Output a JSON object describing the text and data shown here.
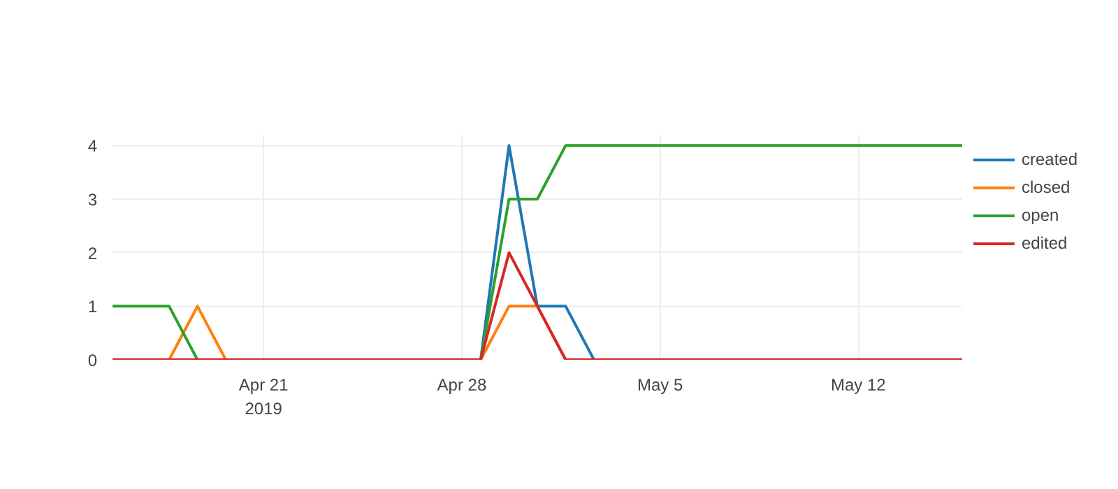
{
  "chart_data": {
    "type": "line",
    "x": [
      "2019-04-15T16:00",
      "2019-04-16T16:00",
      "2019-04-17T16:00",
      "2019-04-18T16:00",
      "2019-04-19T16:00",
      "2019-04-20T16:00",
      "2019-04-21T16:00",
      "2019-04-22T16:00",
      "2019-04-23T16:00",
      "2019-04-24T16:00",
      "2019-04-25T16:00",
      "2019-04-26T16:00",
      "2019-04-27T16:00",
      "2019-04-28T16:00",
      "2019-04-29T16:00",
      "2019-04-30T16:00",
      "2019-05-01T16:00",
      "2019-05-02T16:00",
      "2019-05-03T16:00",
      "2019-05-04T16:00",
      "2019-05-05T16:00",
      "2019-05-06T16:00",
      "2019-05-07T16:00",
      "2019-05-08T16:00",
      "2019-05-09T16:00",
      "2019-05-10T16:00",
      "2019-05-11T16:00",
      "2019-05-12T16:00",
      "2019-05-13T16:00",
      "2019-05-14T16:00",
      "2019-05-15T16:00"
    ],
    "series": [
      {
        "name": "created",
        "color": "#1f77b4",
        "values": [
          null,
          null,
          null,
          null,
          null,
          null,
          null,
          null,
          null,
          null,
          null,
          null,
          null,
          0,
          4,
          1,
          1,
          0,
          null,
          null,
          null,
          null,
          null,
          null,
          null,
          null,
          null,
          null,
          null,
          null,
          null
        ]
      },
      {
        "name": "closed",
        "color": "#ff7f0e",
        "values": [
          null,
          null,
          0,
          1,
          0,
          null,
          null,
          null,
          null,
          null,
          null,
          null,
          null,
          0,
          1,
          1,
          0,
          null,
          null,
          null,
          null,
          null,
          null,
          null,
          null,
          null,
          null,
          null,
          null,
          null,
          null
        ]
      },
      {
        "name": "open",
        "color": "#2ca02c",
        "values": [
          1,
          1,
          1,
          0,
          null,
          null,
          null,
          null,
          null,
          null,
          null,
          null,
          null,
          0,
          3,
          3,
          4,
          4,
          4,
          4,
          4,
          4,
          4,
          4,
          4,
          4,
          4,
          4,
          4,
          4,
          4
        ]
      },
      {
        "name": "edited",
        "color": "#d62728",
        "values": [
          0,
          0,
          0,
          0,
          0,
          0,
          0,
          0,
          0,
          0,
          0,
          0,
          0,
          0,
          2,
          1,
          0,
          0,
          0,
          0,
          0,
          0,
          0,
          0,
          0,
          0,
          0,
          0,
          0,
          0,
          0
        ]
      }
    ],
    "xlim": [
      "2019-04-15T16:00",
      "2019-05-15T16:00"
    ],
    "xticks": [
      {
        "value": "2019-04-21",
        "label": "Apr 21\n2019"
      },
      {
        "value": "2019-04-28",
        "label": "Apr 28"
      },
      {
        "value": "2019-05-05",
        "label": "May 5"
      },
      {
        "value": "2019-05-12",
        "label": "May 12"
      }
    ],
    "ylim": [
      0,
      4.2
    ],
    "yticks": [
      0,
      1,
      2,
      3,
      4
    ],
    "grid": true,
    "legend": "top right",
    "marker": "none",
    "line_style": "solid"
  }
}
